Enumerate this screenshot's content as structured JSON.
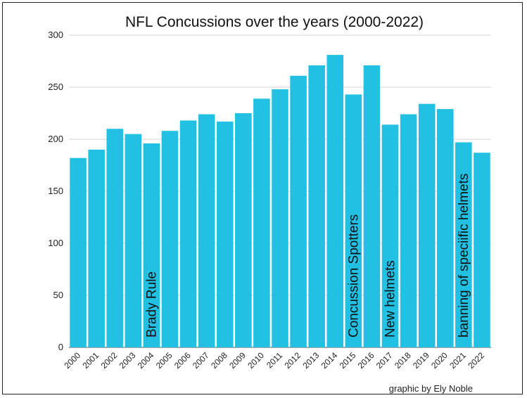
{
  "chart_data": {
    "type": "bar",
    "title": "NFL Concussions over the years (2000-2022)",
    "xlabel": "",
    "ylabel": "",
    "ylim": [
      0,
      300
    ],
    "yticks": [
      0,
      50,
      100,
      150,
      200,
      250,
      300
    ],
    "grid": true,
    "bar_color": "#22c1e3",
    "categories": [
      "2000",
      "2001",
      "2002",
      "2003",
      "2004",
      "2005",
      "2006",
      "2007",
      "2008",
      "2009",
      "2010",
      "2011",
      "2012",
      "2013",
      "2014",
      "2015",
      "2016",
      "2017",
      "2018",
      "2019",
      "2020",
      "2021",
      "2022"
    ],
    "values": [
      182,
      190,
      210,
      205,
      196,
      208,
      218,
      224,
      217,
      225,
      239,
      248,
      261,
      271,
      281,
      243,
      271,
      214,
      224,
      234,
      229,
      197,
      187
    ],
    "annotations": [
      {
        "text": "Brady Rule",
        "category": "2004"
      },
      {
        "text": "Concussion Spotters",
        "category": "2015"
      },
      {
        "text": "New helmets",
        "category": "2017"
      },
      {
        "text": "banning of speciific helmets",
        "category": "2021"
      }
    ]
  },
  "credit": "graphic by Ely Noble"
}
